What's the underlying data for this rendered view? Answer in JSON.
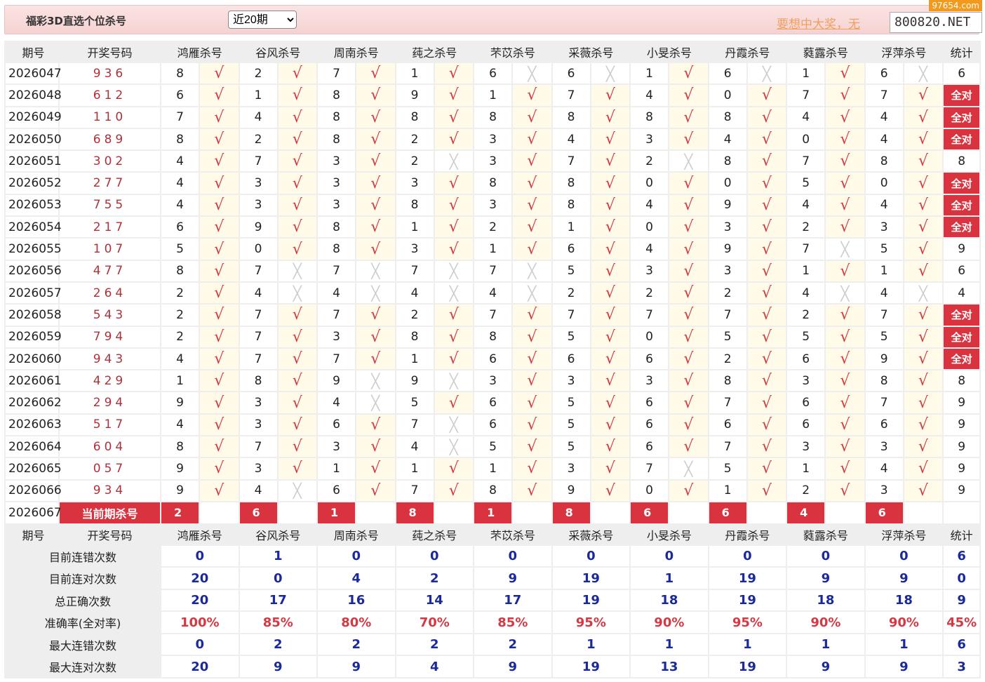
{
  "header": {
    "title": "福彩3D直选个位杀号",
    "period_select": "近20期",
    "promo": "要想中大奖，无",
    "site": "800820.NET",
    "watermark": "97654.com"
  },
  "columns": {
    "period": "期号",
    "draw": "开奖号码",
    "experts": [
      "鸿雁杀号",
      "谷风杀号",
      "周南杀号",
      "莼之杀号",
      "芣苡杀号",
      "采薇杀号",
      "小旻杀号",
      "丹霞杀号",
      "蕤露杀号",
      "浮萍杀号"
    ],
    "stat": "统计"
  },
  "marks": {
    "ok": "√",
    "no": "╳"
  },
  "rows": [
    {
      "period": "2026047",
      "draw": "936",
      "kills": [
        8,
        2,
        7,
        1,
        6,
        6,
        1,
        6,
        1,
        6
      ],
      "hits": [
        1,
        1,
        1,
        1,
        0,
        0,
        1,
        0,
        1,
        0
      ],
      "stat": "6"
    },
    {
      "period": "2026048",
      "draw": "612",
      "kills": [
        6,
        1,
        8,
        9,
        1,
        7,
        4,
        0,
        7,
        7
      ],
      "hits": [
        1,
        1,
        1,
        1,
        1,
        1,
        1,
        1,
        1,
        1
      ],
      "stat": "全对"
    },
    {
      "period": "2026049",
      "draw": "110",
      "kills": [
        7,
        4,
        8,
        8,
        8,
        8,
        8,
        8,
        4,
        4
      ],
      "hits": [
        1,
        1,
        1,
        1,
        1,
        1,
        1,
        1,
        1,
        1
      ],
      "stat": "全对"
    },
    {
      "period": "2026050",
      "draw": "689",
      "kills": [
        8,
        2,
        8,
        2,
        3,
        4,
        3,
        4,
        0,
        4
      ],
      "hits": [
        1,
        1,
        1,
        1,
        1,
        1,
        1,
        1,
        1,
        1
      ],
      "stat": "全对"
    },
    {
      "period": "2026051",
      "draw": "302",
      "kills": [
        4,
        7,
        3,
        2,
        3,
        7,
        2,
        8,
        7,
        8
      ],
      "hits": [
        1,
        1,
        1,
        0,
        1,
        1,
        0,
        1,
        1,
        1
      ],
      "stat": "8"
    },
    {
      "period": "2026052",
      "draw": "277",
      "kills": [
        4,
        3,
        3,
        3,
        8,
        8,
        0,
        0,
        5,
        0
      ],
      "hits": [
        1,
        1,
        1,
        1,
        1,
        1,
        1,
        1,
        1,
        1
      ],
      "stat": "全对"
    },
    {
      "period": "2026053",
      "draw": "755",
      "kills": [
        4,
        3,
        3,
        8,
        3,
        8,
        4,
        9,
        4,
        4
      ],
      "hits": [
        1,
        1,
        1,
        1,
        1,
        1,
        1,
        1,
        1,
        1
      ],
      "stat": "全对"
    },
    {
      "period": "2026054",
      "draw": "217",
      "kills": [
        6,
        9,
        8,
        1,
        2,
        1,
        0,
        3,
        2,
        3
      ],
      "hits": [
        1,
        1,
        1,
        1,
        1,
        1,
        1,
        1,
        1,
        1
      ],
      "stat": "全对"
    },
    {
      "period": "2026055",
      "draw": "107",
      "kills": [
        5,
        0,
        8,
        3,
        1,
        6,
        4,
        9,
        7,
        5
      ],
      "hits": [
        1,
        1,
        1,
        1,
        1,
        1,
        1,
        1,
        0,
        1
      ],
      "stat": "9"
    },
    {
      "period": "2026056",
      "draw": "477",
      "kills": [
        8,
        7,
        7,
        7,
        7,
        5,
        3,
        3,
        1,
        1
      ],
      "hits": [
        1,
        0,
        0,
        0,
        0,
        1,
        1,
        1,
        1,
        1
      ],
      "stat": "6"
    },
    {
      "period": "2026057",
      "draw": "264",
      "kills": [
        2,
        4,
        4,
        4,
        4,
        2,
        2,
        2,
        4,
        4
      ],
      "hits": [
        1,
        0,
        0,
        0,
        0,
        1,
        1,
        1,
        0,
        0
      ],
      "stat": "4"
    },
    {
      "period": "2026058",
      "draw": "543",
      "kills": [
        2,
        7,
        7,
        2,
        7,
        7,
        7,
        7,
        2,
        7
      ],
      "hits": [
        1,
        1,
        1,
        1,
        1,
        1,
        1,
        1,
        1,
        1
      ],
      "stat": "全对"
    },
    {
      "period": "2026059",
      "draw": "794",
      "kills": [
        2,
        7,
        3,
        8,
        8,
        5,
        0,
        5,
        5,
        5
      ],
      "hits": [
        1,
        1,
        1,
        1,
        1,
        1,
        1,
        1,
        1,
        1
      ],
      "stat": "全对"
    },
    {
      "period": "2026060",
      "draw": "943",
      "kills": [
        4,
        7,
        7,
        1,
        6,
        6,
        6,
        2,
        6,
        9
      ],
      "hits": [
        1,
        1,
        1,
        1,
        1,
        1,
        1,
        1,
        1,
        1
      ],
      "stat": "全对"
    },
    {
      "period": "2026061",
      "draw": "429",
      "kills": [
        1,
        8,
        9,
        9,
        3,
        3,
        3,
        8,
        3,
        8
      ],
      "hits": [
        1,
        1,
        0,
        0,
        1,
        1,
        1,
        1,
        1,
        1
      ],
      "stat": "8"
    },
    {
      "period": "2026062",
      "draw": "294",
      "kills": [
        9,
        3,
        4,
        5,
        6,
        5,
        6,
        7,
        6,
        7
      ],
      "hits": [
        1,
        1,
        0,
        1,
        1,
        1,
        1,
        1,
        1,
        1
      ],
      "stat": "9"
    },
    {
      "period": "2026063",
      "draw": "517",
      "kills": [
        4,
        3,
        6,
        7,
        6,
        5,
        6,
        6,
        6,
        6
      ],
      "hits": [
        1,
        1,
        1,
        0,
        1,
        1,
        1,
        1,
        1,
        1
      ],
      "stat": "9"
    },
    {
      "period": "2026064",
      "draw": "604",
      "kills": [
        8,
        7,
        3,
        4,
        5,
        5,
        6,
        7,
        3,
        3
      ],
      "hits": [
        1,
        1,
        1,
        0,
        1,
        1,
        1,
        1,
        1,
        1
      ],
      "stat": "9"
    },
    {
      "period": "2026065",
      "draw": "057",
      "kills": [
        9,
        3,
        1,
        1,
        1,
        3,
        7,
        5,
        1,
        4
      ],
      "hits": [
        1,
        1,
        1,
        1,
        1,
        1,
        0,
        1,
        1,
        1
      ],
      "stat": "9"
    },
    {
      "period": "2026066",
      "draw": "934",
      "kills": [
        9,
        4,
        6,
        7,
        8,
        9,
        0,
        1,
        2,
        3
      ],
      "hits": [
        1,
        0,
        1,
        1,
        1,
        1,
        1,
        1,
        1,
        1
      ],
      "stat": "9"
    }
  ],
  "current": {
    "period": "2026067",
    "label": "当前期杀号",
    "kills": [
      2,
      6,
      1,
      8,
      1,
      8,
      6,
      6,
      4,
      6
    ]
  },
  "stats": [
    {
      "label": "目前连错次数",
      "values": [
        "0",
        "1",
        "0",
        "0",
        "0",
        "0",
        "0",
        "0",
        "0",
        "0",
        "6"
      ]
    },
    {
      "label": "目前连对次数",
      "values": [
        "20",
        "0",
        "4",
        "2",
        "9",
        "19",
        "1",
        "19",
        "9",
        "9",
        "0"
      ]
    },
    {
      "label": "总正确次数",
      "values": [
        "20",
        "17",
        "16",
        "14",
        "17",
        "19",
        "18",
        "19",
        "18",
        "18",
        "9"
      ]
    },
    {
      "label": "准确率(全对率)",
      "values": [
        "100%",
        "85%",
        "80%",
        "70%",
        "85%",
        "95%",
        "90%",
        "95%",
        "90%",
        "90%",
        "45%"
      ],
      "highlight": true
    },
    {
      "label": "最大连错次数",
      "values": [
        "0",
        "2",
        "2",
        "2",
        "2",
        "1",
        "1",
        "1",
        "1",
        "1",
        "6"
      ]
    },
    {
      "label": "最大连对次数",
      "values": [
        "20",
        "9",
        "9",
        "4",
        "9",
        "19",
        "13",
        "19",
        "9",
        "9",
        "3"
      ]
    }
  ]
}
